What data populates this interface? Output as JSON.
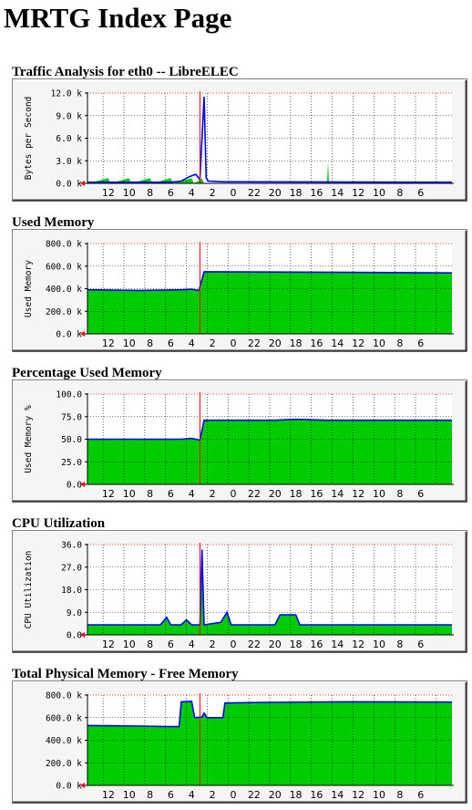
{
  "page": {
    "title": "MRTG Index Page"
  },
  "colors": {
    "fill": "#00cc00",
    "line": "#0000ff",
    "now": "#ff0000",
    "grid": "#000000",
    "top": "#ff0000",
    "frame_bg": "#f5f5f5",
    "plot_bg": "#ffffff"
  },
  "x_ticks": [
    "12",
    "10",
    "8",
    "6",
    "4",
    "2",
    "0",
    "22",
    "20",
    "18",
    "16",
    "14",
    "12",
    "10",
    "8",
    "6"
  ],
  "graphs": [
    {
      "title": "Traffic Analysis for eth0 -- LibreELEC",
      "ylabel": "Bytes per Second",
      "ymax": 12000,
      "yticks": [
        "12.0 k",
        "9.0 k",
        "6.0 k",
        "3.0 k",
        "0.0 k"
      ],
      "chart_data": {
        "type": "area",
        "title": "Traffic Analysis for eth0 -- LibreELEC",
        "ylabel": "Bytes per Second",
        "ylim": [
          0,
          12000
        ],
        "x_hours_ago": [
          35,
          27,
          25,
          24,
          23,
          22.8,
          22.2,
          22,
          21.5,
          0
        ],
        "series": [
          {
            "name": "",
            "values_in": [
              200,
              200,
              200,
              300,
              900,
              11500,
              900,
              300,
              200,
              200
            ]
          }
        ],
        "note_hidden": ""
      },
      "in": [
        [
          35,
          0
        ],
        [
          33,
          700
        ],
        [
          32.8,
          0
        ],
        [
          31,
          700
        ],
        [
          30.8,
          0
        ],
        [
          29,
          700
        ],
        [
          28.8,
          0
        ],
        [
          27,
          700
        ],
        [
          26.8,
          0
        ],
        [
          25,
          700
        ],
        [
          24.8,
          0
        ],
        [
          24,
          600
        ],
        [
          23.8,
          0
        ],
        [
          12,
          0
        ],
        [
          11.9,
          2800
        ],
        [
          11.8,
          0
        ],
        [
          0,
          0
        ]
      ],
      "out": [
        [
          35,
          150
        ],
        [
          28,
          150
        ],
        [
          27,
          150
        ],
        [
          26,
          300
        ],
        [
          25.2,
          900
        ],
        [
          24.6,
          1200
        ],
        [
          24.2,
          500
        ],
        [
          23.8,
          11500
        ],
        [
          23.6,
          700
        ],
        [
          23.4,
          300
        ],
        [
          22,
          200
        ],
        [
          0,
          150
        ]
      ]
    },
    {
      "title": "Used Memory",
      "ylabel": "Used Memory",
      "ymax": 800000,
      "yticks": [
        "800.0 k",
        "600.0 k",
        "400.0 k",
        "200.0 k",
        "0.0 k"
      ],
      "chart_data": {
        "type": "area",
        "title": "Used Memory",
        "ylabel": "Used Memory",
        "ylim": [
          0,
          800000
        ],
        "x_hours_ago": [
          35,
          30,
          26,
          25,
          24.2,
          23.8,
          18,
          0
        ],
        "series": [
          {
            "name": "",
            "values": [
              390000,
              385000,
              390000,
              395000,
              385000,
              550000,
              545000,
              540000
            ]
          }
        ]
      },
      "in": [
        [
          35,
          390000
        ],
        [
          30,
          385000
        ],
        [
          26,
          390000
        ],
        [
          25,
          395000
        ],
        [
          24.3,
          385000
        ],
        [
          23.8,
          550000
        ],
        [
          18,
          548000
        ],
        [
          10,
          545000
        ],
        [
          0,
          540000
        ]
      ],
      "out": [
        [
          35,
          390000
        ],
        [
          30,
          385000
        ],
        [
          26,
          390000
        ],
        [
          25,
          395000
        ],
        [
          24.3,
          385000
        ],
        [
          23.8,
          550000
        ],
        [
          18,
          548000
        ],
        [
          10,
          545000
        ],
        [
          0,
          540000
        ]
      ]
    },
    {
      "title": "Percentage Used Memory",
      "ylabel": "Used Memory %",
      "ymax": 100,
      "yticks": [
        "100.0",
        "75.0",
        "50.0",
        "25.0",
        "0.0"
      ],
      "chart_data": {
        "type": "area",
        "title": "Percentage Used Memory",
        "ylabel": "Used Memory %",
        "ylim": [
          0,
          100
        ],
        "x_hours_ago": [
          35,
          25,
          24,
          23.8,
          15,
          0
        ],
        "series": [
          {
            "name": "",
            "values": [
              50,
              51,
              49,
              71,
              72,
              71
            ]
          }
        ]
      },
      "in": [
        [
          35,
          50
        ],
        [
          26,
          50
        ],
        [
          25,
          51
        ],
        [
          24.2,
          49
        ],
        [
          23.8,
          71
        ],
        [
          17,
          71
        ],
        [
          15,
          72
        ],
        [
          12,
          71
        ],
        [
          0,
          71
        ]
      ],
      "out": [
        [
          35,
          50
        ],
        [
          26,
          50
        ],
        [
          25,
          51
        ],
        [
          24.2,
          49
        ],
        [
          23.8,
          71
        ],
        [
          17,
          71
        ],
        [
          15,
          72
        ],
        [
          12,
          71
        ],
        [
          0,
          71
        ]
      ]
    },
    {
      "title": "CPU Utilization",
      "ylabel": "CPU Utilization",
      "ymax": 36,
      "yticks": [
        "36.0",
        "27.0",
        "18.0",
        "9.0",
        "0.0"
      ],
      "chart_data": {
        "type": "area",
        "title": "CPU Utilization",
        "ylabel": "CPU Utilization",
        "ylim": [
          0,
          36
        ],
        "x_hours_ago": [
          35,
          27,
          25.5,
          23.9,
          21.7,
          16.5,
          15,
          0
        ],
        "series": [
          {
            "name": "",
            "values": [
              4,
              6,
              7,
              34,
              9,
              8,
              8,
              4
            ]
          }
        ]
      },
      "in": [
        [
          35,
          4
        ],
        [
          28,
          4
        ],
        [
          27.4,
          7
        ],
        [
          27,
          4
        ],
        [
          26,
          4
        ],
        [
          25.5,
          6
        ],
        [
          25,
          4
        ],
        [
          24.2,
          4
        ],
        [
          24.0,
          34
        ],
        [
          23.8,
          4
        ],
        [
          22.2,
          5
        ],
        [
          21.6,
          9
        ],
        [
          21.2,
          4
        ],
        [
          17,
          4
        ],
        [
          16.5,
          8
        ],
        [
          15,
          8
        ],
        [
          14.6,
          4
        ],
        [
          0,
          4
        ]
      ],
      "out": [
        [
          35,
          4
        ],
        [
          28,
          4
        ],
        [
          27.4,
          7
        ],
        [
          27,
          4
        ],
        [
          26,
          4
        ],
        [
          25.5,
          6
        ],
        [
          25,
          4
        ],
        [
          24.2,
          4
        ],
        [
          24.0,
          34
        ],
        [
          23.8,
          4
        ],
        [
          22.2,
          5
        ],
        [
          21.6,
          9
        ],
        [
          21.2,
          4
        ],
        [
          17,
          4
        ],
        [
          16.5,
          8
        ],
        [
          15,
          8
        ],
        [
          14.6,
          4
        ],
        [
          0,
          4
        ]
      ]
    },
    {
      "title": "Total Physical Memory - Free Memory",
      "ylabel": "",
      "ymax": 800000,
      "yticks": [
        "800.0 k",
        "600.0 k",
        "400.0 k",
        "200.0 k",
        "0.0 k"
      ],
      "chart_data": {
        "type": "area",
        "title": "Total Physical Memory - Free Memory",
        "ylabel": "",
        "ylim": [
          0,
          800000
        ],
        "x_hours_ago": [
          35,
          26,
          25.8,
          24.6,
          23.6,
          22,
          21.8,
          0
        ],
        "series": [
          {
            "name": "",
            "values": [
              530000,
              525000,
              740000,
              600000,
              620000,
              600000,
              730000,
              740000
            ]
          }
        ]
      },
      "in": [
        [
          35,
          530000
        ],
        [
          30,
          525000
        ],
        [
          27,
          520000
        ],
        [
          26.2,
          520000
        ],
        [
          26,
          740000
        ],
        [
          25,
          745000
        ],
        [
          24.7,
          600000
        ],
        [
          24,
          605000
        ],
        [
          23.8,
          640000
        ],
        [
          23.5,
          600000
        ],
        [
          22,
          600000
        ],
        [
          21.8,
          730000
        ],
        [
          18,
          735000
        ],
        [
          10,
          740000
        ],
        [
          0,
          738000
        ]
      ],
      "out": [
        [
          35,
          530000
        ],
        [
          30,
          525000
        ],
        [
          27,
          520000
        ],
        [
          26.2,
          520000
        ],
        [
          26,
          740000
        ],
        [
          25,
          745000
        ],
        [
          24.7,
          600000
        ],
        [
          24,
          605000
        ],
        [
          23.8,
          640000
        ],
        [
          23.5,
          600000
        ],
        [
          22,
          600000
        ],
        [
          21.8,
          730000
        ],
        [
          18,
          735000
        ],
        [
          10,
          740000
        ],
        [
          0,
          738000
        ]
      ]
    }
  ]
}
